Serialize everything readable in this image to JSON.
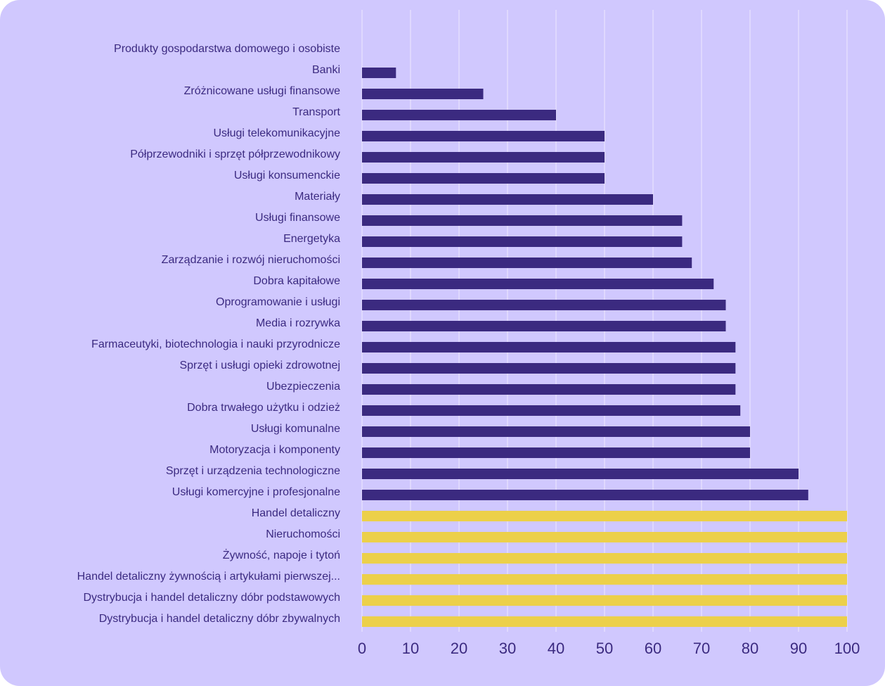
{
  "chart_data": {
    "type": "bar",
    "orientation": "horizontal",
    "categories": [
      "Produkty gospodarstwa domowego i osobiste",
      "Banki",
      "Zróżnicowane usługi finansowe",
      "Transport",
      "Usługi telekomunikacyjne",
      "Półprzewodniki i sprzęt półprzewodnikowy",
      "Usługi konsumenckie",
      "Materiały",
      "Usługi finansowe",
      "Energetyka",
      "Zarządzanie i rozwój nieruchomości",
      "Dobra kapitałowe",
      "Oprogramowanie i usługi",
      "Media i rozrywka",
      "Farmaceutyki, biotechnologia i nauki przyrodnicze",
      "Sprzęt i usługi opieki zdrowotnej",
      "Ubezpieczenia",
      "Dobra trwałego użytku i odzież",
      "Usługi komunalne",
      "Motoryzacja i komponenty",
      "Sprzęt i urządzenia technologiczne",
      "Usługi komercyjne i profesjonalne",
      "Handel detaliczny",
      "Nieruchomości",
      "Żywność, napoje i tytoń",
      "Handel detaliczny żywnością i artykułami pierwszej...",
      "Dystrybucja i handel detaliczny dóbr podstawowych",
      "Dystrybucja i handel detaliczny dóbr zbywalnych"
    ],
    "values": [
      0,
      7,
      25,
      40,
      50,
      50,
      50,
      60,
      66,
      66,
      68,
      72.5,
      75,
      75,
      77,
      77,
      77,
      78,
      80,
      80,
      90,
      92,
      100,
      100,
      100,
      100,
      100,
      100
    ],
    "highlighted": [
      false,
      false,
      false,
      false,
      false,
      false,
      false,
      false,
      false,
      false,
      false,
      false,
      false,
      false,
      false,
      false,
      false,
      false,
      false,
      false,
      false,
      false,
      true,
      true,
      true,
      true,
      true,
      true
    ],
    "xlim": [
      0,
      100
    ],
    "xticks": [
      "0",
      "10",
      "20",
      "30",
      "40",
      "50",
      "60",
      "70",
      "80",
      "90",
      "100"
    ],
    "grid": "vertical",
    "title": "",
    "xlabel": "",
    "ylabel": "",
    "colors": {
      "background": "#d0c8fe",
      "bar": "#3b2a80",
      "highlight": "#ecd04a",
      "text": "#3b2a80",
      "grid": "#e4defe"
    }
  }
}
